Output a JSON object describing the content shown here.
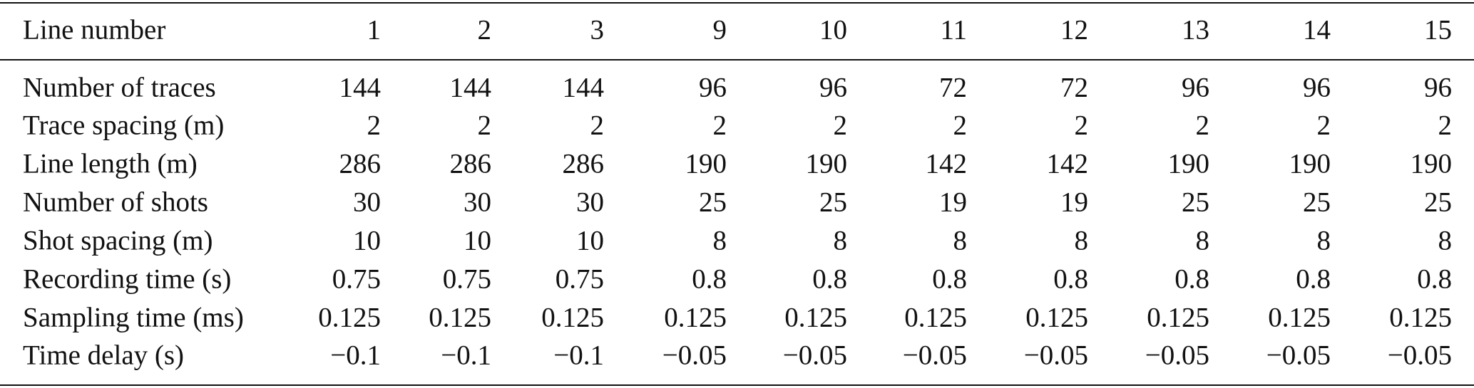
{
  "table": {
    "header": [
      "Line number",
      "1",
      "2",
      "3",
      "9",
      "10",
      "11",
      "12",
      "13",
      "14",
      "15"
    ],
    "rows": [
      [
        "Number of traces",
        "144",
        "144",
        "144",
        "96",
        "96",
        "72",
        "72",
        "96",
        "96",
        "96"
      ],
      [
        "Trace spacing (m)",
        "2",
        "2",
        "2",
        "2",
        "2",
        "2",
        "2",
        "2",
        "2",
        "2"
      ],
      [
        "Line length (m)",
        "286",
        "286",
        "286",
        "190",
        "190",
        "142",
        "142",
        "190",
        "190",
        "190"
      ],
      [
        "Number of shots",
        "30",
        "30",
        "30",
        "25",
        "25",
        "19",
        "19",
        "25",
        "25",
        "25"
      ],
      [
        "Shot spacing (m)",
        "10",
        "10",
        "10",
        "8",
        "8",
        "8",
        "8",
        "8",
        "8",
        "8"
      ],
      [
        "Recording time (s)",
        "0.75",
        "0.75",
        "0.75",
        "0.8",
        "0.8",
        "0.8",
        "0.8",
        "0.8",
        "0.8",
        "0.8"
      ],
      [
        "Sampling time (ms)",
        "0.125",
        "0.125",
        "0.125",
        "0.125",
        "0.125",
        "0.125",
        "0.125",
        "0.125",
        "0.125",
        "0.125"
      ],
      [
        "Time delay (s)",
        "−0.1",
        "−0.1",
        "−0.1",
        "−0.05",
        "−0.05",
        "−0.05",
        "−0.05",
        "−0.05",
        "−0.05",
        "−0.05"
      ]
    ]
  }
}
